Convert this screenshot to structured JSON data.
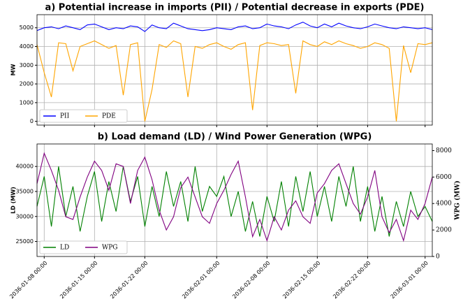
{
  "chart_data": [
    {
      "type": "line",
      "title": "a) Potential increase in imports (PII) / Potential decrease in exports (PDE)",
      "ylabel": "MW",
      "x": [
        "2036-01-07 00:00",
        "2036-01-08 00:00",
        "2036-01-09 00:00",
        "2036-01-10 00:00",
        "2036-01-11 00:00",
        "2036-01-12 00:00",
        "2036-01-13 00:00",
        "2036-01-14 00:00",
        "2036-01-15 00:00",
        "2036-01-16 00:00",
        "2036-01-17 00:00",
        "2036-01-18 00:00",
        "2036-01-19 00:00",
        "2036-01-20 00:00",
        "2036-01-21 00:00",
        "2036-01-22 00:00",
        "2036-01-23 00:00",
        "2036-01-24 00:00",
        "2036-01-25 00:00",
        "2036-01-26 00:00",
        "2036-01-27 00:00",
        "2036-01-28 00:00",
        "2036-01-29 00:00",
        "2036-01-30 00:00",
        "2036-01-31 00:00",
        "2036-02-01 00:00",
        "2036-02-02 00:00",
        "2036-02-03 00:00",
        "2036-02-04 00:00",
        "2036-02-05 00:00",
        "2036-02-06 00:00",
        "2036-02-07 00:00",
        "2036-02-08 00:00",
        "2036-02-09 00:00",
        "2036-02-10 00:00",
        "2036-02-11 00:00",
        "2036-02-12 00:00",
        "2036-02-13 00:00",
        "2036-02-14 00:00",
        "2036-02-15 00:00",
        "2036-02-16 00:00",
        "2036-02-17 00:00",
        "2036-02-18 00:00",
        "2036-02-19 00:00",
        "2036-02-20 00:00",
        "2036-02-21 00:00",
        "2036-02-22 00:00",
        "2036-02-23 00:00",
        "2036-02-24 00:00",
        "2036-02-25 00:00",
        "2036-02-26 00:00",
        "2036-02-27 00:00",
        "2036-02-28 00:00",
        "2036-02-29 00:00",
        "2036-03-01 00:00",
        "2036-03-02 00:00"
      ],
      "xlim": [
        "2036-01-07 00:00",
        "2036-03-02 00:00"
      ],
      "xticks": [
        "2036-01-08 00:00",
        "2036-01-15 00:00",
        "2036-01-22 00:00",
        "2036-02-01 00:00",
        "2036-02-08 00:00",
        "2036-02-15 00:00",
        "2036-02-22 00:00",
        "2036-03-01 00:00"
      ],
      "ylim": [
        -200,
        5700
      ],
      "yticks": [
        0,
        1000,
        2000,
        3000,
        4000,
        5000
      ],
      "grid": true,
      "legend": "lower left",
      "series": [
        {
          "name": "PII",
          "color": "#0000ff",
          "values": [
            4850,
            5000,
            5050,
            4950,
            5100,
            5000,
            4900,
            5150,
            5200,
            5050,
            4900,
            5000,
            4950,
            5100,
            5050,
            4800,
            5150,
            5000,
            4950,
            5250,
            5100,
            4950,
            4900,
            4850,
            4900,
            5000,
            4950,
            4900,
            5050,
            5100,
            4950,
            5000,
            5200,
            5100,
            5050,
            4950,
            5150,
            5300,
            5100,
            5000,
            5200,
            5050,
            5250,
            5100,
            5000,
            4950,
            5050,
            5200,
            5100,
            5000,
            4950,
            5050,
            5000,
            4950,
            5000,
            4900
          ]
        },
        {
          "name": "PDE",
          "color": "#ffa500",
          "values": [
            4100,
            2600,
            1300,
            4200,
            4150,
            2700,
            4000,
            4150,
            4300,
            4100,
            3900,
            4050,
            1400,
            4100,
            4200,
            0,
            1700,
            4100,
            3950,
            4300,
            4150,
            1300,
            4000,
            3900,
            4100,
            4200,
            4000,
            3850,
            4100,
            4200,
            600,
            4050,
            4200,
            4150,
            4050,
            4100,
            1500,
            4300,
            4100,
            4000,
            4250,
            4100,
            4300,
            4150,
            4050,
            3900,
            4000,
            4200,
            4100,
            3900,
            0,
            4050,
            2600,
            4150,
            4100,
            4200
          ]
        }
      ]
    },
    {
      "type": "line",
      "title": "b) Load demand (LD) / Wind Power Generation (WPG)",
      "ylabel": "LD (MW)",
      "y2label": "WPG (MW)",
      "x": [
        "2036-01-07 00:00",
        "2036-01-08 00:00",
        "2036-01-09 00:00",
        "2036-01-10 00:00",
        "2036-01-11 00:00",
        "2036-01-12 00:00",
        "2036-01-13 00:00",
        "2036-01-14 00:00",
        "2036-01-15 00:00",
        "2036-01-16 00:00",
        "2036-01-17 00:00",
        "2036-01-18 00:00",
        "2036-01-19 00:00",
        "2036-01-20 00:00",
        "2036-01-21 00:00",
        "2036-01-22 00:00",
        "2036-01-23 00:00",
        "2036-01-24 00:00",
        "2036-01-25 00:00",
        "2036-01-26 00:00",
        "2036-01-27 00:00",
        "2036-01-28 00:00",
        "2036-01-29 00:00",
        "2036-01-30 00:00",
        "2036-01-31 00:00",
        "2036-02-01 00:00",
        "2036-02-02 00:00",
        "2036-02-03 00:00",
        "2036-02-04 00:00",
        "2036-02-05 00:00",
        "2036-02-06 00:00",
        "2036-02-07 00:00",
        "2036-02-08 00:00",
        "2036-02-09 00:00",
        "2036-02-10 00:00",
        "2036-02-11 00:00",
        "2036-02-12 00:00",
        "2036-02-13 00:00",
        "2036-02-14 00:00",
        "2036-02-15 00:00",
        "2036-02-16 00:00",
        "2036-02-17 00:00",
        "2036-02-18 00:00",
        "2036-02-19 00:00",
        "2036-02-20 00:00",
        "2036-02-21 00:00",
        "2036-02-22 00:00",
        "2036-02-23 00:00",
        "2036-02-24 00:00",
        "2036-02-25 00:00",
        "2036-02-26 00:00",
        "2036-02-27 00:00",
        "2036-02-28 00:00",
        "2036-02-29 00:00",
        "2036-03-01 00:00",
        "2036-03-02 00:00"
      ],
      "xlim": [
        "2036-01-07 00:00",
        "2036-03-02 00:00"
      ],
      "xticks": [
        "2036-01-08 00:00",
        "2036-01-15 00:00",
        "2036-01-22 00:00",
        "2036-02-01 00:00",
        "2036-02-08 00:00",
        "2036-02-15 00:00",
        "2036-02-22 00:00",
        "2036-03-01 00:00"
      ],
      "ylim": [
        22000,
        44500
      ],
      "yticks": [
        25000,
        30000,
        35000,
        40000
      ],
      "y2lim": [
        0,
        8500
      ],
      "y2ticks": [
        0,
        2000,
        4000,
        6000,
        8000
      ],
      "grid": true,
      "legend": "lower left",
      "series": [
        {
          "name": "LD",
          "color": "#008000",
          "values": [
            32000,
            38000,
            28000,
            40000,
            30000,
            36000,
            27000,
            34000,
            39000,
            29000,
            37000,
            31000,
            40000,
            33000,
            38000,
            28000,
            36000,
            30000,
            39000,
            32000,
            37000,
            29000,
            40000,
            31000,
            36000,
            34000,
            38000,
            30000,
            35000,
            27000,
            33000,
            26000,
            34000,
            29000,
            37000,
            28000,
            38000,
            31000,
            39000,
            30000,
            36000,
            29000,
            38000,
            32000,
            40000,
            29000,
            36000,
            27000,
            34000,
            26000,
            33000,
            28000,
            35000,
            30000,
            32000,
            29000
          ]
        },
        {
          "name": "WPG",
          "color": "#800080",
          "axis": "y2",
          "values": [
            5500,
            7800,
            6500,
            5000,
            3000,
            2800,
            4500,
            6000,
            7200,
            6500,
            5000,
            7000,
            6800,
            4000,
            6500,
            7500,
            5800,
            3500,
            2000,
            3000,
            5200,
            6000,
            4500,
            3000,
            2500,
            4000,
            5000,
            6200,
            7200,
            4500,
            1500,
            2800,
            1200,
            3000,
            2000,
            3500,
            4200,
            3000,
            2500,
            4800,
            5500,
            6500,
            7000,
            5500,
            4000,
            3200,
            4500,
            6500,
            3000,
            1800,
            2800,
            1200,
            3500,
            2800,
            4000,
            6000
          ]
        }
      ]
    }
  ]
}
